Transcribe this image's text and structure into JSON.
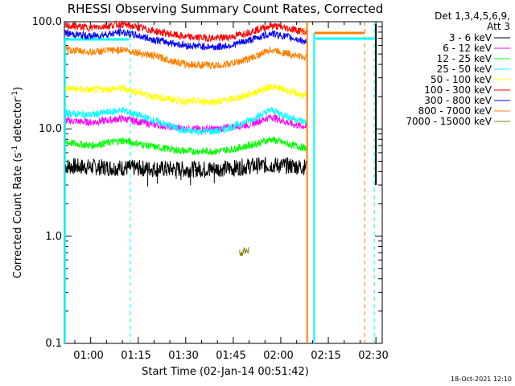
{
  "chart_data": {
    "type": "line",
    "title": "RHESSI Observing Summary Count Rates, Corrected",
    "xlabel": "Start Time (02-Jan-14 00:51:42)",
    "ylabel_main": "Corrected Count Rate (s",
    "ylabel_sup1": "-1",
    "ylabel_mid": " detector",
    "ylabel_sup2": "-1",
    "ylabel_end": ")",
    "y_scale": "log",
    "ylim": [
      0.1,
      100.0
    ],
    "y_ticks": [
      "100.0",
      "10.0",
      "1.0",
      "0.1"
    ],
    "x_ticks": [
      "01:00",
      "01:15",
      "01:30",
      "01:45",
      "02:00",
      "02:15",
      "02:30"
    ],
    "x_range_minutes": [
      51.7,
      152.0
    ],
    "legend_header": [
      "Det 1,3,4,5,6,9,",
      "Att 3"
    ],
    "legend_placement": "right",
    "flag_marker": "S",
    "series": [
      {
        "name": "3 - 6 keV",
        "color": "#000000",
        "x": [
          52,
          60,
          75,
          90,
          105,
          110,
          117,
          124,
          128
        ],
        "y": [
          4.5,
          4.4,
          4.3,
          4.2,
          4.3,
          4.5,
          4.6,
          4.5,
          4.4
        ]
      },
      {
        "name": "6 - 12 keV",
        "color": "#ff00ff",
        "x": [
          52,
          60,
          70,
          80,
          90,
          100,
          105,
          110,
          117,
          124,
          128
        ],
        "y": [
          12,
          11.5,
          12.5,
          11,
          10,
          10,
          10.5,
          11,
          13,
          11,
          10.5
        ]
      },
      {
        "name": "12 - 25 keV",
        "color": "#00ff00",
        "x": [
          52,
          60,
          70,
          80,
          90,
          100,
          105,
          110,
          117,
          124,
          128
        ],
        "y": [
          7.5,
          7,
          7.8,
          6.8,
          6.2,
          6.2,
          6.5,
          7,
          8,
          7,
          6.6
        ]
      },
      {
        "name": "25 - 50 keV",
        "color": "#00ffff",
        "x": [
          52,
          60,
          70,
          80,
          90,
          100,
          105,
          110,
          117,
          124,
          128
        ],
        "y": [
          14,
          13.5,
          15,
          12,
          9.5,
          9.5,
          10.5,
          12,
          15,
          12.5,
          11.5
        ]
      },
      {
        "name": "50 - 100 keV",
        "color": "#ffff00",
        "x": [
          52,
          60,
          70,
          80,
          90,
          100,
          105,
          110,
          117,
          124,
          128
        ],
        "y": [
          24,
          23,
          24,
          20,
          18,
          18,
          19,
          21,
          25,
          22,
          20
        ]
      },
      {
        "name": "100 - 300 keV",
        "color": "#ff0000",
        "x": [
          52,
          60,
          70,
          80,
          90,
          100,
          105,
          110,
          117,
          124,
          128
        ],
        "y": [
          92,
          88,
          95,
          82,
          72,
          70,
          73,
          80,
          92,
          85,
          80
        ]
      },
      {
        "name": "300 - 800 keV",
        "color": "#0000ff",
        "x": [
          52,
          60,
          70,
          80,
          90,
          100,
          105,
          110,
          117,
          124,
          128
        ],
        "y": [
          78,
          73,
          80,
          68,
          60,
          58,
          61,
          67,
          78,
          70,
          65
        ]
      },
      {
        "name": "800 - 7000 keV",
        "color": "#ff8000",
        "x": [
          52,
          60,
          70,
          80,
          90,
          100,
          105,
          110,
          117,
          124,
          128
        ],
        "y": [
          55,
          52,
          55,
          48,
          40,
          39,
          41,
          45,
          55,
          49,
          46
        ]
      },
      {
        "name": "7000 - 15000 keV",
        "color": "#808000",
        "x": [
          107,
          110
        ],
        "y": [
          0.7,
          0.75
        ]
      }
    ],
    "annotations": {
      "timestamp": "18-Oct-2021 12:10"
    }
  }
}
